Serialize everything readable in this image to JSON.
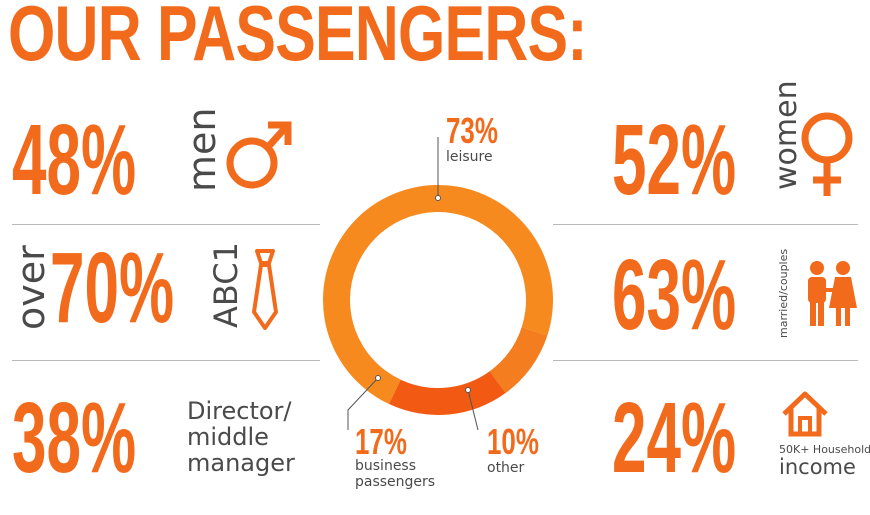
{
  "title": "OUR PASSENGERS:",
  "colors": {
    "accent": "#f26a1b",
    "leisure": "#f68a1e",
    "business": "#f25a14",
    "other": "#f37d1f",
    "text": "#4a4a4a"
  },
  "stats": {
    "men": {
      "value": "48%",
      "label": "men",
      "icon": "male-icon"
    },
    "abc1": {
      "prefix": "over",
      "value": "70%",
      "label": "ABC1",
      "icon": "tie-icon"
    },
    "director": {
      "value": "38%",
      "label_line1": "Director/",
      "label_line2": "middle",
      "label_line3": "manager"
    },
    "women": {
      "value": "52%",
      "label": "women",
      "icon": "female-icon"
    },
    "married": {
      "value": "63%",
      "label": "married/couples",
      "icon": "couple-icon"
    },
    "income": {
      "value": "24%",
      "label_small": "50K+ Household",
      "label_big": "income",
      "icon": "house-icon"
    }
  },
  "chart_data": {
    "type": "pie",
    "donut": true,
    "categories": [
      "leisure",
      "business passengers",
      "other"
    ],
    "values": [
      73,
      17,
      10
    ],
    "labels": {
      "leisure": {
        "pct": "73%",
        "text": "leisure"
      },
      "business": {
        "pct": "17%",
        "text_line1": "business",
        "text_line2": "passengers"
      },
      "other": {
        "pct": "10%",
        "text": "other"
      }
    }
  }
}
